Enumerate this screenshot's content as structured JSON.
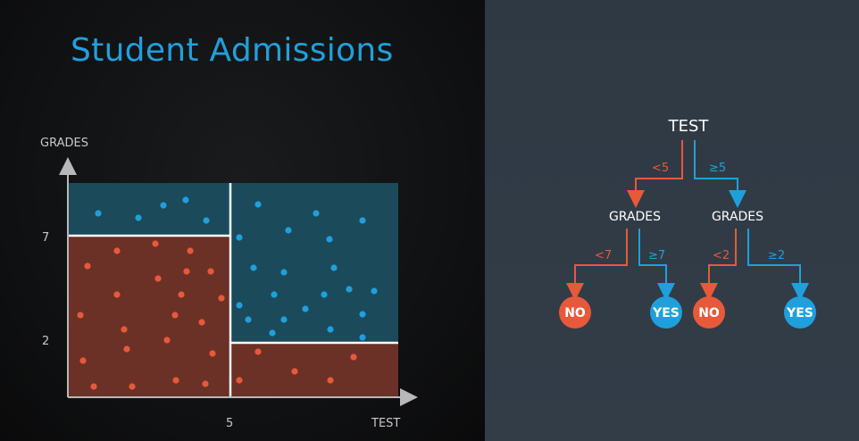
{
  "title": "Student Admissions",
  "colors": {
    "red": "#e8593a",
    "blue": "#1fa0dc",
    "red_region": "#6b3126",
    "blue_region": "#1b4a5b",
    "title": "#1fa0dc"
  },
  "chart_data": {
    "type": "scatter",
    "xlabel": "TEST",
    "ylabel": "GRADES",
    "xticks": [
      "5"
    ],
    "yticks": [
      "2",
      "7"
    ],
    "regions": [
      {
        "name": "TEST < 5, GRADES < 7",
        "class": "NO"
      },
      {
        "name": "TEST < 5, GRADES >= 7",
        "class": "YES"
      },
      {
        "name": "TEST >= 5, GRADES >= 2",
        "class": "YES"
      },
      {
        "name": "TEST >= 5, GRADES < 2",
        "class": "NO"
      }
    ]
  },
  "tree": {
    "root": "TEST",
    "left_edge": "<5",
    "right_edge": "≥5",
    "left_node": "GRADES",
    "right_node": "GRADES",
    "ll_edge": "<7",
    "lr_edge": "≥7",
    "rl_edge": "<2",
    "rr_edge": "≥2",
    "leaves": [
      "NO",
      "YES",
      "NO",
      "YES"
    ]
  }
}
